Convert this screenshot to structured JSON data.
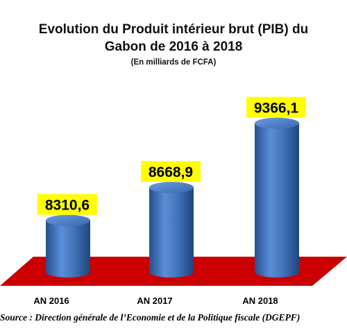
{
  "chart_data": {
    "type": "bar",
    "title_lines": [
      "Evolution du Produit intérieur brut (PIB) du",
      "Gabon de 2016 à 2018"
    ],
    "subtitle": "(En milliards de FCFA)",
    "categories": [
      "AN 2016",
      "AN 2017",
      "AN 2018"
    ],
    "values": [
      8310.6,
      8668.9,
      9366.1
    ],
    "value_labels": [
      "8310,6",
      "8668,9",
      "9366,1"
    ],
    "xlabel": "",
    "ylabel": "",
    "ylim": [
      7750,
      9650
    ],
    "grid": false,
    "legend": "none",
    "bar_color": "#4a7cc0",
    "floor_color": "#cc0000",
    "label_bg_color": "#ffff00"
  },
  "source": "Source : Direction générale de l’Economie et de la Politique fiscale (DGEPF)"
}
